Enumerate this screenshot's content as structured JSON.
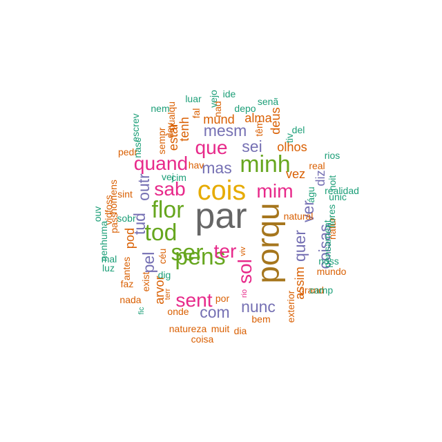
{
  "palette": {
    "c1": "#1b9e77",
    "c2": "#d95f02",
    "c3": "#7570b3",
    "c4": "#e7298a",
    "c5": "#66a61e",
    "c6": "#e6ab02",
    "c7": "#a6761d",
    "c8": "#666666"
  },
  "chart_data": {
    "type": "wordcloud",
    "words": [
      {
        "text": "par",
        "freq": 10,
        "color": "c8",
        "rotate": 0
      },
      {
        "text": "porqu",
        "freq": 9,
        "color": "c7",
        "rotate": 90
      },
      {
        "text": "cois",
        "freq": 8,
        "color": "c6",
        "rotate": 0
      },
      {
        "text": "ser",
        "freq": 7,
        "color": "c5",
        "rotate": 0
      },
      {
        "text": "minh",
        "freq": 7,
        "color": "c5",
        "rotate": 0
      },
      {
        "text": "pens",
        "freq": 7,
        "color": "c5",
        "rotate": 0
      },
      {
        "text": "flor",
        "freq": 7,
        "color": "c5",
        "rotate": 0
      },
      {
        "text": "tod",
        "freq": 7,
        "color": "c5",
        "rotate": 0
      },
      {
        "text": "que",
        "freq": 6,
        "color": "c4",
        "rotate": 0
      },
      {
        "text": "mim",
        "freq": 6,
        "color": "c4",
        "rotate": 0
      },
      {
        "text": "ter",
        "freq": 6,
        "color": "c4",
        "rotate": 0
      },
      {
        "text": "sol",
        "freq": 6,
        "color": "c4",
        "rotate": 90
      },
      {
        "text": "quand",
        "freq": 6,
        "color": "c4",
        "rotate": 0
      },
      {
        "text": "sent",
        "freq": 6,
        "color": "c4",
        "rotate": 0
      },
      {
        "text": "sab",
        "freq": 6,
        "color": "c4",
        "rotate": 0
      },
      {
        "text": "sei",
        "freq": 5,
        "color": "c3",
        "rotate": 0
      },
      {
        "text": "mas",
        "freq": 5,
        "color": "c3",
        "rotate": 0
      },
      {
        "text": "mesm",
        "freq": 5,
        "color": "c3",
        "rotate": 0
      },
      {
        "text": "outr",
        "freq": 5,
        "color": "c3",
        "rotate": 90
      },
      {
        "text": "tud",
        "freq": 5,
        "color": "c3",
        "rotate": 90
      },
      {
        "text": "pel",
        "freq": 5,
        "color": "c3",
        "rotate": 90
      },
      {
        "text": "com",
        "freq": 5,
        "color": "c3",
        "rotate": 0
      },
      {
        "text": "nunc",
        "freq": 5,
        "color": "c3",
        "rotate": 0
      },
      {
        "text": "quer",
        "freq": 5,
        "color": "c3",
        "rotate": 90
      },
      {
        "text": "coisas",
        "freq": 5,
        "color": "c3",
        "rotate": 90
      },
      {
        "text": "ver",
        "freq": 5,
        "color": "c3",
        "rotate": 90
      },
      {
        "text": "diz",
        "freq": 4,
        "color": "c3",
        "rotate": 90
      },
      {
        "text": "olhos",
        "freq": 4,
        "color": "c2",
        "rotate": 0
      },
      {
        "text": "vez",
        "freq": 4,
        "color": "c2",
        "rotate": 0
      },
      {
        "text": "assim",
        "freq": 4,
        "color": "c2",
        "rotate": 90
      },
      {
        "text": "tenh",
        "freq": 4,
        "color": "c2",
        "rotate": 90
      },
      {
        "text": "estar",
        "freq": 4,
        "color": "c2",
        "rotate": 90
      },
      {
        "text": "deus",
        "freq": 4,
        "color": "c2",
        "rotate": 90
      },
      {
        "text": "alma",
        "freq": 4,
        "color": "c2",
        "rotate": 0
      },
      {
        "text": "mund",
        "freq": 4,
        "color": "c2",
        "rotate": 0
      },
      {
        "text": "pod",
        "freq": 4,
        "color": "c2",
        "rotate": 90
      },
      {
        "text": "arvor",
        "freq": 4,
        "color": "c2",
        "rotate": 90
      },
      {
        "text": "exist",
        "freq": 3,
        "color": "c2",
        "rotate": 90
      },
      {
        "text": "onde",
        "freq": 3,
        "color": "c2",
        "rotate": 0
      },
      {
        "text": "por",
        "freq": 3,
        "color": "c2",
        "rotate": 0
      },
      {
        "text": "natureza",
        "freq": 3,
        "color": "c2",
        "rotate": 0
      },
      {
        "text": "muit",
        "freq": 3,
        "color": "c2",
        "rotate": 0
      },
      {
        "text": "coisa",
        "freq": 3,
        "color": "c2",
        "rotate": 0
      },
      {
        "text": "bem",
        "freq": 3,
        "color": "c2",
        "rotate": 0
      },
      {
        "text": "dia",
        "freq": 3,
        "color": "c2",
        "rotate": 0
      },
      {
        "text": "antes",
        "freq": 3,
        "color": "c2",
        "rotate": 90
      },
      {
        "text": "faz",
        "freq": 3,
        "color": "c2",
        "rotate": 0
      },
      {
        "text": "nada",
        "freq": 3,
        "color": "c2",
        "rotate": 0
      },
      {
        "text": "sint",
        "freq": 3,
        "color": "c2",
        "rotate": 0
      },
      {
        "text": "pass",
        "freq": 3,
        "color": "c2",
        "rotate": 90
      },
      {
        "text": "sempr",
        "freq": 3,
        "color": "c2",
        "rotate": 90
      },
      {
        "text": "dev",
        "freq": 3,
        "color": "c2",
        "rotate": 90
      },
      {
        "text": "têm",
        "freq": 3,
        "color": "c2",
        "rotate": 90
      },
      {
        "text": "hav",
        "freq": 3,
        "color": "c2",
        "rotate": 0
      },
      {
        "text": "fal",
        "freq": 3,
        "color": "c2",
        "rotate": 90
      },
      {
        "text": "nad",
        "freq": 3,
        "color": "c2",
        "rotate": 90
      },
      {
        "text": "pedr",
        "freq": 3,
        "color": "c2",
        "rotate": 0
      },
      {
        "text": "homens",
        "freq": 3,
        "color": "c2",
        "rotate": 90
      },
      {
        "text": "vidfoss",
        "freq": 3,
        "color": "c2",
        "rotate": 90
      },
      {
        "text": "qualqu",
        "freq": 3,
        "color": "c2",
        "rotate": 90
      },
      {
        "text": "real",
        "freq": 3,
        "color": "c2",
        "rotate": 0
      },
      {
        "text": "natural",
        "freq": 3,
        "color": "c2",
        "rotate": 0
      },
      {
        "text": "natur",
        "freq": 3,
        "color": "c2",
        "rotate": 90
      },
      {
        "text": "mundo",
        "freq": 3,
        "color": "c2",
        "rotate": 0
      },
      {
        "text": "grand",
        "freq": 3,
        "color": "c2",
        "rotate": 0
      },
      {
        "text": "exterior",
        "freq": 3,
        "color": "c2",
        "rotate": 90
      },
      {
        "text": "céu",
        "freq": 3,
        "color": "c2",
        "rotate": 90
      },
      {
        "text": "terr",
        "freq": 2,
        "color": "c2",
        "rotate": 90
      },
      {
        "text": "viv",
        "freq": 2,
        "color": "c2",
        "rotate": 90
      },
      {
        "text": "rio",
        "freq": 2,
        "color": "c4",
        "rotate": 90
      },
      {
        "text": "rios",
        "freq": 3,
        "color": "c1",
        "rotate": 0
      },
      {
        "text": "realidad",
        "freq": 3,
        "color": "c1",
        "rotate": 0
      },
      {
        "text": "pensament",
        "freq": 3,
        "color": "c1",
        "rotate": 90
      },
      {
        "text": "noss",
        "freq": 3,
        "color": "c1",
        "rotate": 0
      },
      {
        "text": "camp",
        "freq": 3,
        "color": "c1",
        "rotate": 0
      },
      {
        "text": "flores",
        "freq": 3,
        "color": "c1",
        "rotate": 90
      },
      {
        "text": "únic",
        "freq": 3,
        "color": "c1",
        "rotate": 0
      },
      {
        "text": "noit",
        "freq": 3,
        "color": "c1",
        "rotate": 90
      },
      {
        "text": "águ",
        "freq": 3,
        "color": "c1",
        "rotate": 90
      },
      {
        "text": "tiv",
        "freq": 3,
        "color": "c1",
        "rotate": 90
      },
      {
        "text": "del",
        "freq": 3,
        "color": "c1",
        "rotate": 0
      },
      {
        "text": "senã",
        "freq": 3,
        "color": "c1",
        "rotate": 0
      },
      {
        "text": "depo",
        "freq": 3,
        "color": "c1",
        "rotate": 0
      },
      {
        "text": "ide",
        "freq": 3,
        "color": "c1",
        "rotate": 0
      },
      {
        "text": "vejo",
        "freq": 3,
        "color": "c1",
        "rotate": 90
      },
      {
        "text": "luar",
        "freq": 3,
        "color": "c1",
        "rotate": 0
      },
      {
        "text": "nem",
        "freq": 3,
        "color": "c1",
        "rotate": 0
      },
      {
        "text": "escrev",
        "freq": 3,
        "color": "c1",
        "rotate": 90
      },
      {
        "text": "nasc",
        "freq": 3,
        "color": "c1",
        "rotate": 90
      },
      {
        "text": "vej",
        "freq": 3,
        "color": "c1",
        "rotate": 0
      },
      {
        "text": "cim",
        "freq": 3,
        "color": "c1",
        "rotate": 0
      },
      {
        "text": "sobr",
        "freq": 3,
        "color": "c1",
        "rotate": 0
      },
      {
        "text": "ouv",
        "freq": 3,
        "color": "c1",
        "rotate": 90
      },
      {
        "text": "nenhuma",
        "freq": 3,
        "color": "c1",
        "rotate": 90
      },
      {
        "text": "luz",
        "freq": 3,
        "color": "c1",
        "rotate": 0
      },
      {
        "text": "mal",
        "freq": 3,
        "color": "c1",
        "rotate": 0
      },
      {
        "text": "dig",
        "freq": 3,
        "color": "c1",
        "rotate": 0
      },
      {
        "text": "fic",
        "freq": 2,
        "color": "c1",
        "rotate": 90
      },
      {
        "text": "corr",
        "freq": 3,
        "color": "c1",
        "rotate": 0
      }
    ]
  }
}
